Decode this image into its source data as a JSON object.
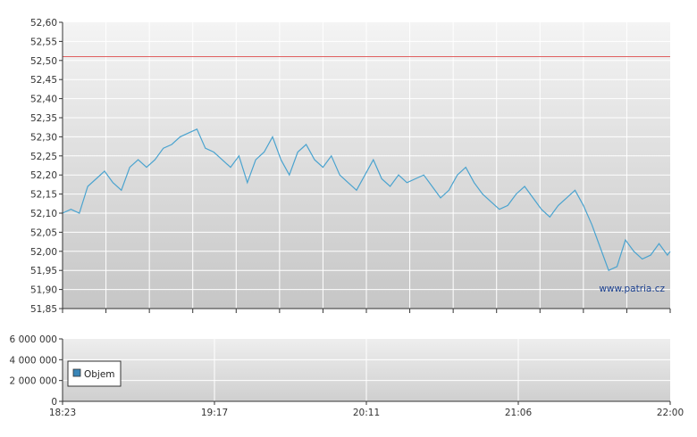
{
  "watermark": "www.patria.cz",
  "colors": {
    "price_line": "#4aa3cf",
    "reference_line": "#e06060",
    "volume": "#3a86b8",
    "grid": "#ffffff"
  },
  "chart_data": [
    {
      "type": "line",
      "title": "",
      "ylim": [
        51.85,
        52.6
      ],
      "y_ticks": [
        "52,60",
        "52,55",
        "52,50",
        "52,45",
        "52,40",
        "52,35",
        "52,30",
        "52,25",
        "52,20",
        "52,15",
        "52,10",
        "52,05",
        "52,00",
        "51,95",
        "51,90",
        "51,85"
      ],
      "x_range": [
        "18:23",
        "22:00"
      ],
      "grid": true,
      "reference_line": {
        "value": 52.51
      },
      "series": [
        {
          "x": [
            "18:23",
            "18:26",
            "18:29",
            "18:32",
            "18:35",
            "18:38",
            "18:41",
            "18:44",
            "18:47",
            "18:50",
            "18:53",
            "18:56",
            "18:59",
            "19:02",
            "19:05",
            "19:08",
            "19:11",
            "19:14",
            "19:17",
            "19:20",
            "19:23",
            "19:26",
            "19:29",
            "19:32",
            "19:35",
            "19:38",
            "19:41",
            "19:44",
            "19:47",
            "19:50",
            "19:53",
            "19:56",
            "19:59",
            "20:02",
            "20:05",
            "20:08",
            "20:11",
            "20:14",
            "20:17",
            "20:20",
            "20:23",
            "20:26",
            "20:29",
            "20:32",
            "20:35",
            "20:38",
            "20:41",
            "20:44",
            "20:47",
            "20:50",
            "20:53",
            "20:56",
            "20:59",
            "21:02",
            "21:05",
            "21:08",
            "21:11",
            "21:14",
            "21:17",
            "21:20",
            "21:23",
            "21:26",
            "21:29",
            "21:32",
            "21:35",
            "21:38",
            "21:41",
            "21:44",
            "21:47",
            "21:50",
            "21:53",
            "21:56",
            "21:59",
            "22:00"
          ],
          "values": [
            52.1,
            52.11,
            52.1,
            52.17,
            52.19,
            52.21,
            52.18,
            52.16,
            52.22,
            52.24,
            52.22,
            52.24,
            52.27,
            52.28,
            52.3,
            52.31,
            52.32,
            52.27,
            52.26,
            52.24,
            52.22,
            52.25,
            52.18,
            52.24,
            52.26,
            52.3,
            52.24,
            52.2,
            52.26,
            52.28,
            52.24,
            52.22,
            52.25,
            52.2,
            52.18,
            52.16,
            52.2,
            52.24,
            52.19,
            52.17,
            52.2,
            52.18,
            52.19,
            52.2,
            52.17,
            52.14,
            52.16,
            52.2,
            52.22,
            52.18,
            52.15,
            52.13,
            52.11,
            52.12,
            52.15,
            52.17,
            52.14,
            52.11,
            52.09,
            52.12,
            52.14,
            52.16,
            52.12,
            52.07,
            52.01,
            51.95,
            51.96,
            52.03,
            52.0,
            51.98,
            51.99,
            52.02,
            51.99,
            52.0
          ]
        }
      ]
    },
    {
      "type": "bar",
      "ylim": [
        0,
        6000000
      ],
      "y_ticks": [
        "6 000 000",
        "4 000 000",
        "2 000 000",
        "0"
      ],
      "x_ticks": [
        "18:23",
        "19:17",
        "20:11",
        "21:06",
        "22:00"
      ],
      "grid": true,
      "legend": {
        "placement": "left",
        "entries": [
          "Objem"
        ]
      }
    }
  ]
}
